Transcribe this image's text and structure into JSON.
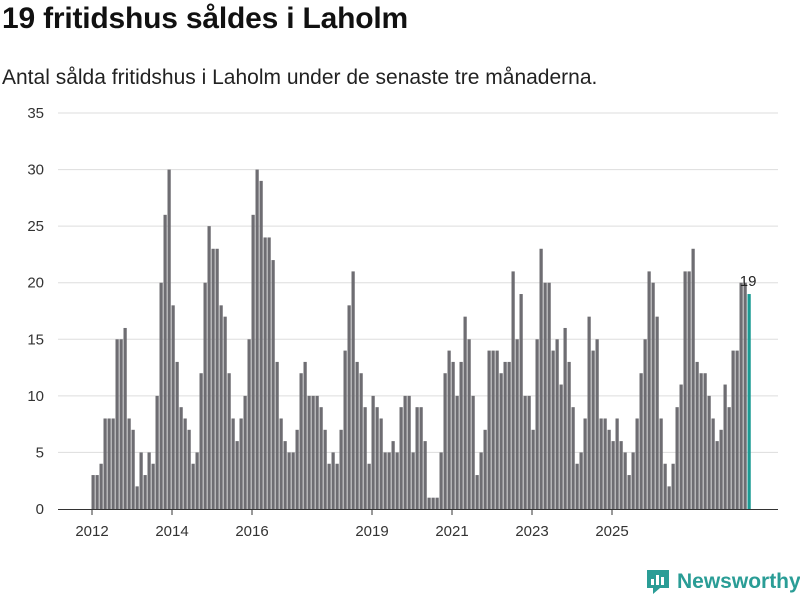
{
  "brand": {
    "name": "Newsworthy"
  },
  "colors": {
    "bar": "#6e6d72",
    "highlight": "#1b9b94",
    "grid": "#dddddd",
    "brand": "#2a9d96"
  },
  "chart_data": {
    "type": "bar",
    "title": "19 fritidshus såldes i Laholm",
    "subtitle": "Antal sålda fritidshus i Laholm under de senaste tre månaderna.",
    "xlabel": "",
    "ylabel": "",
    "ylim": [
      0,
      35
    ],
    "yticks": [
      0,
      5,
      10,
      15,
      20,
      25,
      30,
      35
    ],
    "xticks": [
      {
        "label": "2012",
        "index": 0
      },
      {
        "label": "2014",
        "index": 20
      },
      {
        "label": "2016",
        "index": 40
      },
      {
        "label": "2019",
        "index": 70
      },
      {
        "label": "2021",
        "index": 90
      },
      {
        "label": "2023",
        "index": 110
      },
      {
        "label": "2025",
        "index": 130
      }
    ],
    "values": [
      3,
      3,
      4,
      8,
      8,
      8,
      15,
      15,
      16,
      8,
      7,
      2,
      5,
      3,
      5,
      4,
      10,
      20,
      26,
      30,
      18,
      13,
      9,
      8,
      7,
      4,
      5,
      12,
      20,
      25,
      23,
      23,
      18,
      17,
      12,
      8,
      6,
      8,
      10,
      15,
      26,
      30,
      29,
      24,
      24,
      22,
      13,
      8,
      6,
      5,
      5,
      7,
      12,
      13,
      10,
      10,
      10,
      9,
      7,
      4,
      5,
      4,
      7,
      14,
      18,
      21,
      13,
      12,
      9,
      4,
      10,
      9,
      8,
      5,
      5,
      6,
      5,
      9,
      10,
      10,
      5,
      9,
      9,
      6,
      1,
      1,
      1,
      5,
      12,
      14,
      13,
      10,
      13,
      17,
      15,
      10,
      3,
      5,
      7,
      14,
      14,
      14,
      12,
      13,
      13,
      21,
      15,
      19,
      10,
      10,
      7,
      15,
      23,
      20,
      20,
      14,
      15,
      11,
      16,
      13,
      9,
      4,
      5,
      8,
      17,
      14,
      15,
      8,
      8,
      7,
      6,
      8,
      6,
      5,
      3,
      5,
      8,
      12,
      15,
      21,
      20,
      17,
      8,
      4,
      2,
      4,
      9,
      11,
      21,
      21,
      23,
      13,
      12,
      12,
      10,
      8,
      6,
      7,
      11,
      9,
      14,
      14,
      20,
      20,
      19
    ],
    "highlight_last": true,
    "highlight_label": "19",
    "grid": true
  }
}
